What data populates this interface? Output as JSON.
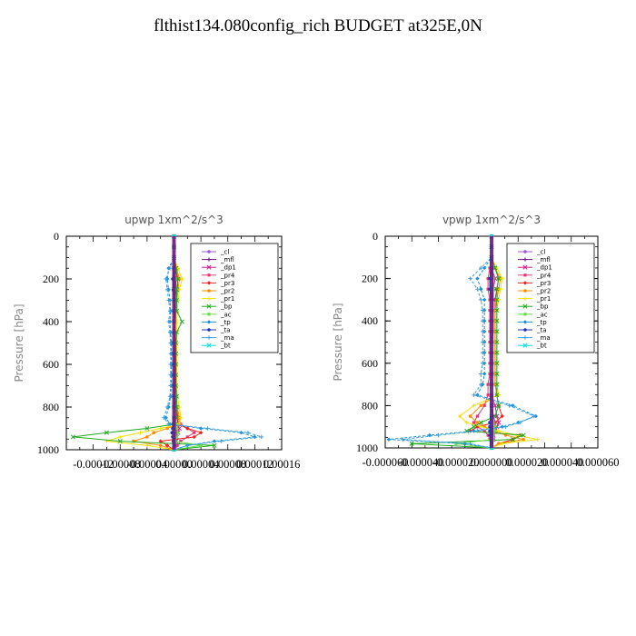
{
  "page_title": "flthist134.080config_rich  BUDGET at325E,0N",
  "chart_data": [
    {
      "type": "line",
      "title": "upwp   1xm^2/s^3",
      "ylabel": "Pressure [hPa]",
      "xlabel": "",
      "ylim": [
        1000,
        0
      ],
      "y_ticks": [
        0,
        200,
        400,
        600,
        800,
        1000
      ],
      "xlim": [
        -0.00016,
        0.00016
      ],
      "x_tick_labels": [
        "-0.00012",
        "-0.00008",
        "-0.00004",
        "0.00000",
        "0.00004",
        "0.00008",
        "0.00012",
        "0.00016"
      ],
      "x_tick_label_values": [
        -0.00012,
        -8e-05,
        -4e-05,
        0.0,
        4e-05,
        8e-05,
        0.00012,
        0.00016
      ],
      "legend_position": "top-right",
      "y": [
        0,
        50,
        100,
        150,
        200,
        250,
        300,
        350,
        400,
        450,
        500,
        550,
        600,
        650,
        700,
        750,
        800,
        850,
        880,
        900,
        920,
        940,
        960,
        980,
        1000
      ],
      "series": [
        {
          "name": "_cl",
          "color": "#9b59d0",
          "values": [
            0,
            0,
            0,
            0,
            0,
            0,
            0,
            0,
            0,
            0,
            0,
            0,
            0,
            0,
            0,
            0,
            0,
            0,
            0,
            0,
            0,
            0,
            0,
            0,
            0
          ]
        },
        {
          "name": "_mfl",
          "color": "#6a0f7a",
          "values": [
            0,
            0,
            0,
            0,
            2e-06,
            1e-06,
            0,
            0,
            0,
            0,
            0,
            0,
            0,
            0,
            0,
            0,
            0,
            0,
            2e-06,
            3e-06,
            4e-06,
            3e-06,
            2e-06,
            1e-06,
            0
          ]
        },
        {
          "name": "_dp1",
          "color": "#d01c8b",
          "values": [
            0,
            0,
            0,
            0,
            3e-06,
            2e-06,
            1e-06,
            1e-06,
            2e-06,
            1e-06,
            0,
            0,
            0,
            0,
            0,
            0,
            2e-06,
            4e-06,
            6e-06,
            8e-06,
            6e-06,
            4e-06,
            3e-06,
            2e-06,
            0
          ]
        },
        {
          "name": "_pr4",
          "color": "#e0387a",
          "values": [
            0,
            0,
            0,
            0,
            3e-06,
            3e-06,
            2e-06,
            2e-06,
            2e-06,
            2e-06,
            1e-06,
            1e-06,
            1e-06,
            1e-06,
            1e-06,
            2e-06,
            4e-06,
            6e-06,
            1e-05,
            2e-05,
            3e-05,
            2e-05,
            1e-05,
            5e-06,
            0
          ]
        },
        {
          "name": "_pr3",
          "color": "#ee2222",
          "values": [
            0,
            0,
            0,
            2e-06,
            5e-06,
            6e-06,
            4e-06,
            3e-06,
            2e-06,
            2e-06,
            2e-06,
            2e-06,
            2e-06,
            2e-06,
            2e-06,
            3e-06,
            4e-06,
            5e-06,
            6e-06,
            2e-05,
            4e-05,
            3e-05,
            -2e-05,
            -1e-05,
            0
          ]
        },
        {
          "name": "_pr2",
          "color": "#ff8c00",
          "values": [
            0,
            0,
            0,
            4e-06,
            8e-06,
            6e-06,
            4e-06,
            3e-06,
            2e-06,
            2e-06,
            2e-06,
            2e-06,
            2e-06,
            2e-06,
            2e-06,
            3e-06,
            5e-06,
            8e-06,
            6e-06,
            -1e-05,
            -3e-05,
            -4e-05,
            -6e-05,
            -2e-05,
            0
          ]
        },
        {
          "name": "_pr1",
          "color": "#f0e000",
          "values": [
            0,
            0,
            0,
            6e-06,
            1.2e-05,
            8e-06,
            6e-06,
            5e-06,
            4e-06,
            4e-06,
            4e-06,
            4e-06,
            4e-06,
            4e-06,
            4e-06,
            5e-06,
            8e-06,
            1e-05,
            8e-06,
            -2e-05,
            -5e-05,
            -8e-05,
            -0.0001,
            -4e-05,
            0
          ]
        },
        {
          "name": "_bp",
          "color": "#22aa22",
          "values": [
            0,
            0,
            0,
            3e-06,
            6e-06,
            4e-06,
            4e-06,
            4e-06,
            1.2e-05,
            4e-06,
            3e-06,
            3e-06,
            3e-06,
            3e-06,
            3e-06,
            4e-06,
            4e-06,
            3e-06,
            2e-06,
            -4e-05,
            -0.0001,
            -0.00015,
            -8e-05,
            6e-05,
            0
          ]
        },
        {
          "name": "_ac",
          "color": "#66dd44",
          "values": [
            0,
            0,
            0,
            0,
            2e-06,
            1e-06,
            0,
            0,
            0,
            0,
            0,
            0,
            0,
            0,
            0,
            0,
            0,
            0,
            2e-06,
            4e-06,
            6e-06,
            4e-06,
            2e-06,
            4e-05,
            0
          ]
        },
        {
          "name": "_tp",
          "color": "#1a8fd8",
          "values": [
            0,
            0,
            0,
            -8e-06,
            -1e-05,
            -8e-06,
            -6e-06,
            -5e-06,
            -6e-06,
            -5e-06,
            -4e-06,
            -4e-06,
            -4e-06,
            -4e-06,
            -4e-06,
            -5e-06,
            -8e-06,
            -1.2e-05,
            -6e-06,
            4e-05,
            0.0001,
            0.00012,
            6e-05,
            2e-05,
            0
          ]
        },
        {
          "name": "_ta",
          "color": "#2233bb",
          "values": [
            0,
            0,
            0,
            0,
            -2e-06,
            -1e-06,
            0,
            0,
            0,
            0,
            0,
            0,
            0,
            0,
            0,
            0,
            0,
            0,
            -1e-06,
            -2e-06,
            -3e-06,
            -2e-06,
            -1e-06,
            0,
            0
          ]
        },
        {
          "name": "_ma",
          "color": "#3aa0e0",
          "values": [
            0,
            0,
            0,
            -6e-06,
            -1.2e-05,
            -1e-05,
            -8e-06,
            -6e-06,
            -8e-06,
            -6e-06,
            -5e-06,
            -5e-06,
            -5e-06,
            -5e-06,
            -5e-06,
            -6e-06,
            -1e-05,
            -1.5e-05,
            -8e-06,
            5e-05,
            0.00011,
            0.00013,
            7e-05,
            2e-05,
            0
          ]
        },
        {
          "name": "_bt",
          "color": "#00e0e0",
          "values": [
            0,
            0,
            0,
            0,
            0,
            0,
            0,
            0,
            0,
            0,
            0,
            0,
            0,
            0,
            0,
            0,
            0,
            0,
            0,
            0,
            0,
            0,
            0,
            0,
            0
          ]
        }
      ]
    },
    {
      "type": "line",
      "title": "vpwp   1xm^2/s^3",
      "ylabel": "Pressure [hPa]",
      "xlabel": "",
      "ylim": [
        1000,
        0
      ],
      "y_ticks": [
        0,
        200,
        400,
        600,
        800,
        1000
      ],
      "xlim": [
        -6e-05,
        6e-05
      ],
      "x_tick_labels": [
        "-0.000060",
        "-0.000040",
        "-0.000020",
        "0.000000",
        "0.000020",
        "0.000040",
        "0.000060"
      ],
      "x_tick_label_values": [
        -6e-05,
        -4e-05,
        -2e-05,
        0.0,
        2e-05,
        4e-05,
        6e-05
      ],
      "legend_position": "top-right",
      "y": [
        0,
        50,
        100,
        150,
        200,
        250,
        300,
        350,
        400,
        450,
        500,
        550,
        600,
        650,
        700,
        750,
        800,
        850,
        880,
        900,
        920,
        940,
        960,
        980,
        1000
      ],
      "series": [
        {
          "name": "_cl",
          "color": "#9b59d0",
          "values": [
            0,
            0,
            0,
            0,
            0,
            0,
            0,
            0,
            0,
            0,
            0,
            0,
            0,
            0,
            0,
            0,
            0,
            0,
            0,
            0,
            0,
            0,
            0,
            0,
            0
          ]
        },
        {
          "name": "_mfl",
          "color": "#6a0f7a",
          "values": [
            0,
            0,
            0,
            0,
            1e-06,
            1e-06,
            0,
            0,
            0,
            0,
            0,
            0,
            0,
            0,
            0,
            0,
            0,
            1e-06,
            2e-06,
            2e-06,
            2e-06,
            1e-06,
            1e-06,
            0,
            0
          ]
        },
        {
          "name": "_dp1",
          "color": "#d01c8b",
          "values": [
            0,
            0,
            0,
            0,
            2e-06,
            1e-06,
            1e-06,
            1e-06,
            1e-06,
            1e-06,
            0,
            0,
            0,
            0,
            0,
            0,
            2e-06,
            3e-06,
            4e-06,
            3e-06,
            2e-06,
            1e-06,
            1e-06,
            0,
            0
          ]
        },
        {
          "name": "_pr4",
          "color": "#e0387a",
          "values": [
            0,
            0,
            0,
            -1e-06,
            -2e-06,
            -2e-06,
            -1e-06,
            -1e-06,
            -1e-06,
            -1e-06,
            -1e-06,
            -1e-06,
            -1e-06,
            -1e-06,
            -2e-06,
            -2e-06,
            -4e-06,
            -8e-06,
            -1e-05,
            -8e-06,
            -4e-06,
            -2e-06,
            -1e-06,
            0,
            0
          ]
        },
        {
          "name": "_pr3",
          "color": "#ee2222",
          "values": [
            0,
            0,
            0,
            2e-06,
            4e-06,
            3e-06,
            2e-06,
            2e-06,
            2e-06,
            2e-06,
            2e-06,
            2e-06,
            2e-06,
            2e-06,
            2e-06,
            3e-06,
            4e-06,
            6e-06,
            2e-06,
            -8e-06,
            -1.2e-05,
            1.6e-05,
            1.2e-05,
            4e-06,
            0
          ]
        },
        {
          "name": "_pr2",
          "color": "#ff8c00",
          "values": [
            0,
            0,
            0,
            2e-06,
            5e-06,
            4e-06,
            3e-06,
            2e-06,
            2e-06,
            2e-06,
            2e-06,
            2e-06,
            2e-06,
            2e-06,
            2e-06,
            3e-06,
            -6e-06,
            -1.2e-05,
            -8e-06,
            -4e-06,
            2e-06,
            8e-06,
            1.8e-05,
            4e-06,
            0
          ]
        },
        {
          "name": "_pr1",
          "color": "#f0e000",
          "values": [
            0,
            0,
            0,
            3e-06,
            6e-06,
            5e-06,
            4e-06,
            3e-06,
            3e-06,
            3e-06,
            3e-06,
            3e-06,
            3e-06,
            3e-06,
            3e-06,
            4e-06,
            -1e-05,
            -1.8e-05,
            -1.4e-05,
            -6e-06,
            4e-06,
            1.4e-05,
            2.6e-05,
            6e-06,
            0
          ]
        },
        {
          "name": "_bp",
          "color": "#22aa22",
          "values": [
            0,
            0,
            0,
            2e-06,
            4e-06,
            3e-06,
            3e-06,
            3e-06,
            3e-06,
            3e-06,
            3e-06,
            3e-06,
            3e-06,
            3e-06,
            3e-06,
            3e-06,
            4e-06,
            2e-06,
            -6e-06,
            -1e-05,
            -1.4e-05,
            1.8e-05,
            1.2e-05,
            -4.5e-05,
            0
          ]
        },
        {
          "name": "_ac",
          "color": "#66dd44",
          "values": [
            0,
            0,
            0,
            0,
            1e-06,
            1e-06,
            0,
            0,
            0,
            0,
            0,
            0,
            0,
            0,
            0,
            0,
            0,
            0,
            1e-06,
            2e-06,
            2e-06,
            1e-06,
            1e-06,
            -2e-05,
            0
          ]
        },
        {
          "name": "_tp",
          "color": "#1a8fd8",
          "values": [
            0,
            0,
            0,
            -4e-06,
            -8e-06,
            -6e-06,
            -4e-06,
            -4e-06,
            -4e-06,
            -4e-06,
            -4e-06,
            -4e-06,
            -4e-06,
            -4e-06,
            -5e-06,
            -8e-06,
            1.2e-05,
            2.5e-05,
            1.5e-05,
            6e-06,
            -1e-05,
            -3.5e-05,
            -5.8e-05,
            -1.5e-05,
            0
          ]
        },
        {
          "name": "_ta",
          "color": "#2233bb",
          "values": [
            0,
            0,
            0,
            0,
            -1e-06,
            -1e-06,
            0,
            0,
            0,
            0,
            0,
            0,
            0,
            0,
            0,
            0,
            0,
            0,
            -1e-06,
            -1e-06,
            -1e-06,
            -1e-06,
            0,
            0,
            0
          ]
        },
        {
          "name": "_ma",
          "color": "#3aa0e0",
          "values": [
            0,
            0,
            0,
            -6e-06,
            -1.2e-05,
            -8e-06,
            -6e-06,
            -5e-06,
            -5e-06,
            -5e-06,
            -5e-06,
            -5e-06,
            -5e-06,
            -6e-06,
            -6e-06,
            -1e-05,
            1e-05,
            2.4e-05,
            1.6e-05,
            8e-06,
            -8e-06,
            -3e-05,
            -5e-05,
            -1.2e-05,
            0
          ]
        },
        {
          "name": "_bt",
          "color": "#00e0e0",
          "values": [
            0,
            0,
            0,
            0,
            0,
            0,
            0,
            0,
            0,
            0,
            0,
            0,
            0,
            0,
            0,
            0,
            0,
            0,
            0,
            0,
            0,
            0,
            0,
            0,
            0
          ]
        }
      ]
    }
  ]
}
